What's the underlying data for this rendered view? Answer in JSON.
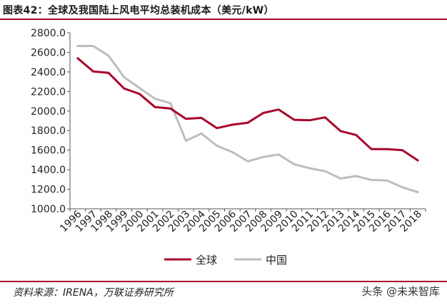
{
  "header": {
    "title": "图表42：全球及我国陆上风电平均总装机成本（美元/kW）"
  },
  "footer": {
    "source": "资料来源：IRENA，万联证券研究所",
    "watermark": "头条 @未来智库"
  },
  "colors": {
    "accent": "#a8072a",
    "global": "#a8072a",
    "china": "#bdbdbd"
  },
  "chart_data": {
    "type": "line",
    "title": "图表42：全球及我国陆上风电平均总装机成本（美元/kW）",
    "x": [
      "1996",
      "1997",
      "1998",
      "1999",
      "2000",
      "2001",
      "2002",
      "2003",
      "2004",
      "2005",
      "2006",
      "2007",
      "2008",
      "2009",
      "2010",
      "2011",
      "2012",
      "2013",
      "2014",
      "2015",
      "2016",
      "2017",
      "2018"
    ],
    "ylim": [
      1000,
      2800
    ],
    "yticks": [
      "1000.0",
      "1200.0",
      "1400.0",
      "1600.0",
      "1800.0",
      "2000.0",
      "2200.0",
      "2400.0",
      "2600.0",
      "2800.0"
    ],
    "grid": false,
    "legend_position": "bottom",
    "series": [
      {
        "name": "全球",
        "color": "#a8072a",
        "values": [
          2540,
          2405,
          2390,
          2230,
          2175,
          2040,
          2025,
          1920,
          1930,
          1825,
          1860,
          1880,
          1980,
          2015,
          1910,
          1905,
          1935,
          1795,
          1755,
          1610,
          1610,
          1600,
          1495
        ]
      },
      {
        "name": "中国",
        "color": "#bdbdbd",
        "values": [
          2665,
          2665,
          2565,
          2345,
          2235,
          2125,
          2080,
          1695,
          1770,
          1645,
          1580,
          1485,
          1530,
          1555,
          1455,
          1415,
          1385,
          1310,
          1335,
          1295,
          1290,
          1220,
          1170
        ]
      }
    ]
  }
}
